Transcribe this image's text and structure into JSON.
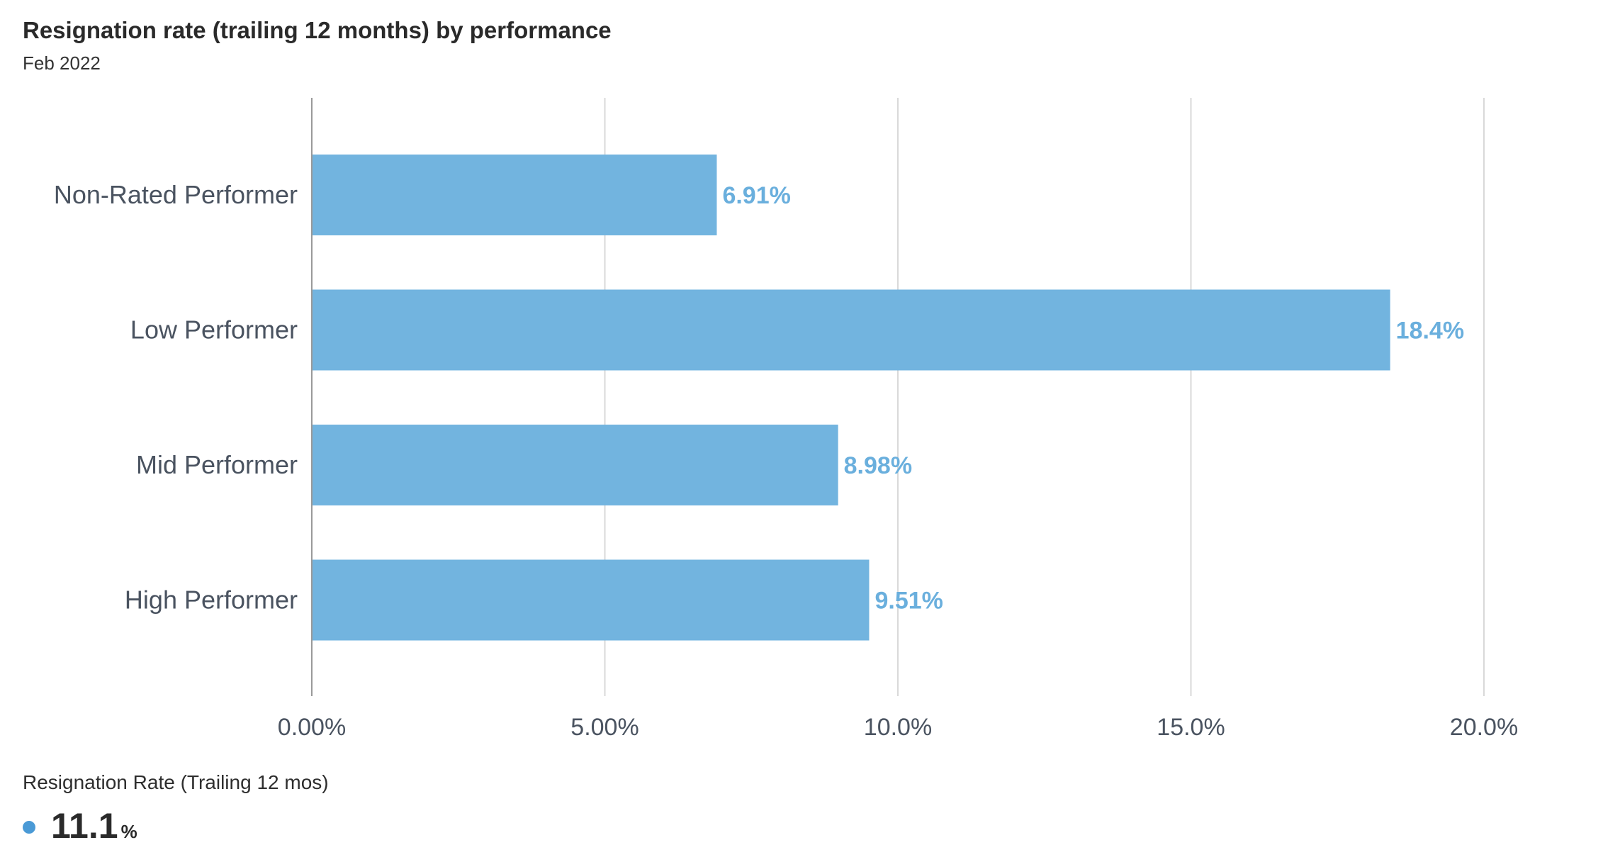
{
  "colors": {
    "bar": "#72b4df",
    "value_label": "#6aafdd",
    "grid": "#d9d9d9",
    "axis": "#9a9a9a",
    "category_label": "#4a5360",
    "tick_label": "#4a5360",
    "summary_dot": "#4a9ad6"
  },
  "chart_data": {
    "type": "bar",
    "orientation": "horizontal",
    "title": "Resignation rate (trailing 12 months) by performance",
    "subtitle": "Feb 2022",
    "categories": [
      "Non-Rated Performer",
      "Low Performer",
      "Mid Performer",
      "High Performer"
    ],
    "values": [
      6.91,
      18.4,
      8.98,
      9.51
    ],
    "value_labels": [
      "6.91%",
      "18.4%",
      "8.98%",
      "9.51%"
    ],
    "xlim": [
      0,
      20
    ],
    "xticks": [
      0,
      5,
      10,
      15,
      20
    ],
    "xtick_labels": [
      "0.00%",
      "5.00%",
      "10.0%",
      "15.0%",
      "20.0%"
    ],
    "grid": true,
    "legend": "none"
  },
  "summary": {
    "label": "Resignation Rate (Trailing 12 mos)",
    "value": "11.1",
    "unit": "%"
  }
}
